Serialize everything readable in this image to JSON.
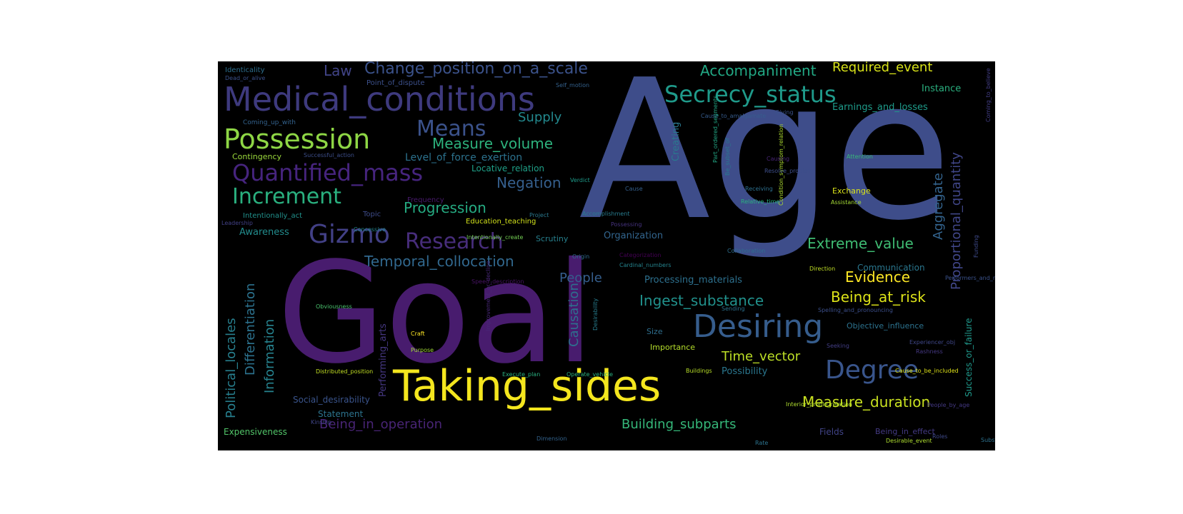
{
  "wordcloud": {
    "background": "#000000",
    "words": [
      {
        "text": "Age",
        "color": "#3e4d8a"
      },
      {
        "text": "Goal",
        "color": "#481c6e"
      },
      {
        "text": "Taking_sides",
        "color": "#f4e61e"
      },
      {
        "text": "Medical_conditions",
        "color": "#3e3a7e"
      },
      {
        "text": "Desiring",
        "color": "#365d8d"
      },
      {
        "text": "Possession",
        "color": "#8ed645"
      },
      {
        "text": "Secrecy_status",
        "color": "#1f9a8a"
      },
      {
        "text": "Degree",
        "color": "#39558c"
      },
      {
        "text": "Quantified_mass",
        "color": "#46247e"
      },
      {
        "text": "Increment",
        "color": "#2ab07f"
      },
      {
        "text": "Gizmo",
        "color": "#424086"
      },
      {
        "text": "Research",
        "color": "#472d7b"
      },
      {
        "text": "Means",
        "color": "#3b528b"
      },
      {
        "text": "Change_position_on_a_scale",
        "color": "#3b528b"
      },
      {
        "text": "Accompaniment",
        "color": "#22a884"
      },
      {
        "text": "Required_event",
        "color": "#d8e219"
      },
      {
        "text": "Law",
        "color": "#414487"
      },
      {
        "text": "Supply",
        "color": "#23898e"
      },
      {
        "text": "Measure_volume",
        "color": "#2db27d"
      },
      {
        "text": "Progression",
        "color": "#25ab82"
      },
      {
        "text": "Negation",
        "color": "#355f8d"
      },
      {
        "text": "Temporal_collocation",
        "color": "#31688e"
      },
      {
        "text": "Extreme_value",
        "color": "#3fbc73"
      },
      {
        "text": "Evidence",
        "color": "#fde725"
      },
      {
        "text": "Being_at_risk",
        "color": "#dde318"
      },
      {
        "text": "Ingest_substance",
        "color": "#21918c"
      },
      {
        "text": "Time_vector",
        "color": "#bddf26"
      },
      {
        "text": "Measure_duration",
        "color": "#c8e020"
      },
      {
        "text": "Being_in_operation",
        "color": "#482475"
      },
      {
        "text": "Building_subparts",
        "color": "#35b779"
      },
      {
        "text": "Information",
        "color": "#26828e"
      },
      {
        "text": "Differentiation",
        "color": "#2c728e"
      },
      {
        "text": "Political_locales",
        "color": "#277f8e"
      },
      {
        "text": "Causation",
        "color": "#2e6f8e"
      },
      {
        "text": "People",
        "color": "#355e8d"
      },
      {
        "text": "Aggregate",
        "color": "#33638d"
      },
      {
        "text": "Proportional_quantity",
        "color": "#404688"
      },
      {
        "text": "Earnings_and_losses",
        "color": "#1e9b8a"
      },
      {
        "text": "Instance",
        "color": "#2ab07f"
      },
      {
        "text": "Level_of_force_exertion",
        "color": "#2c728e"
      },
      {
        "text": "Locative_relation",
        "color": "#1fa088"
      },
      {
        "text": "Awareness",
        "color": "#228c8d"
      },
      {
        "text": "Processing_materials",
        "color": "#2d708e"
      },
      {
        "text": "Organization",
        "color": "#32658e"
      },
      {
        "text": "Performing_arts",
        "color": "#453781"
      },
      {
        "text": "Creating",
        "color": "#2a788e"
      },
      {
        "text": "Possibility",
        "color": "#2a768e"
      },
      {
        "text": "Contingency",
        "color": "#9bd93c"
      },
      {
        "text": "Social_desirability",
        "color": "#3a548c"
      },
      {
        "text": "Expensiveness",
        "color": "#52c569"
      },
      {
        "text": "Statement",
        "color": "#2c738e"
      },
      {
        "text": "Fields",
        "color": "#414487"
      },
      {
        "text": "Being_in_effect",
        "color": "#443a83"
      },
      {
        "text": "Success_or_failure",
        "color": "#1f988b"
      },
      {
        "text": "Communication",
        "color": "#2a768e"
      },
      {
        "text": "Objective_influence",
        "color": "#2c728e"
      },
      {
        "text": "Importance",
        "color": "#b5de2b"
      },
      {
        "text": "Size",
        "color": "#2e6e8e"
      },
      {
        "text": "Exchange",
        "color": "#dae319"
      },
      {
        "text": "Scrutiny",
        "color": "#27808e"
      },
      {
        "text": "Identicality",
        "color": "#2e6f8e"
      },
      {
        "text": "Point_of_dispute",
        "color": "#3c508b"
      },
      {
        "text": "Coming_up_with",
        "color": "#33628d"
      },
      {
        "text": "Frequency",
        "color": "#481a6c"
      },
      {
        "text": "Intentionally_act",
        "color": "#21918c"
      },
      {
        "text": "Education_teaching",
        "color": "#d2e21b"
      },
      {
        "text": "Topic",
        "color": "#3e4c8a"
      },
      {
        "text": "Dead_or_alive",
        "color": "#3b518b"
      },
      {
        "text": "Successful_action",
        "color": "#3d4e8a"
      },
      {
        "text": "Leadership",
        "color": "#424186"
      },
      {
        "text": "Concessive",
        "color": "#24868e"
      },
      {
        "text": "Intentionally_create",
        "color": "#75d054"
      },
      {
        "text": "Project",
        "color": "#2a788e"
      },
      {
        "text": "Accomplishment",
        "color": "#287c8e"
      },
      {
        "text": "Cause_to_amalgamate",
        "color": "#365c8d"
      },
      {
        "text": "Self_motion",
        "color": "#34618d"
      },
      {
        "text": "Roles",
        "color": "#3e4989"
      },
      {
        "text": "Origin",
        "color": "#2f6c8e"
      },
      {
        "text": "Cardinal_numbers",
        "color": "#25848e"
      },
      {
        "text": "Categorization",
        "color": "#440154"
      },
      {
        "text": "Speed_description",
        "color": "#471365"
      },
      {
        "text": "Obviousness",
        "color": "#4ac16d"
      },
      {
        "text": "Craft",
        "color": "#fde725"
      },
      {
        "text": "Purpose",
        "color": "#a2da37"
      },
      {
        "text": "Desirability",
        "color": "#287d8e"
      },
      {
        "text": "Improvement_or_decline",
        "color": "#482878"
      },
      {
        "text": "Execute_plan",
        "color": "#29af7f"
      },
      {
        "text": "Operate_vehicle",
        "color": "#2ab07f"
      },
      {
        "text": "Buildings",
        "color": "#b8de29"
      },
      {
        "text": "Distributed_position",
        "color": "#c2df23"
      },
      {
        "text": "Kinship",
        "color": "#404588"
      },
      {
        "text": "Dimension",
        "color": "#33638d"
      },
      {
        "text": "Desirable_event",
        "color": "#addc30"
      },
      {
        "text": "Substance",
        "color": "#2d718e"
      },
      {
        "text": "Rate",
        "color": "#2c738e"
      },
      {
        "text": "Interior_profile_relation",
        "color": "#b0dd2f"
      },
      {
        "text": "People_by_age",
        "color": "#443983"
      },
      {
        "text": "Rashness",
        "color": "#453882"
      },
      {
        "text": "Experiencer_obj",
        "color": "#3f4788"
      },
      {
        "text": "Cause_to_be_included",
        "color": "#dfe318"
      },
      {
        "text": "Performers_and_roles",
        "color": "#3b528b"
      },
      {
        "text": "Direction",
        "color": "#c0df25"
      },
      {
        "text": "Collaboration",
        "color": "#2e6e8e"
      },
      {
        "text": "Assistance",
        "color": "#a5db36"
      },
      {
        "text": "Relative_time",
        "color": "#2ab07f"
      },
      {
        "text": "Condition_symptom_relation",
        "color": "#addc30"
      },
      {
        "text": "Part_ordered_segments",
        "color": "#22a785"
      },
      {
        "text": "Be_subset_of",
        "color": "#2a778e"
      },
      {
        "text": "Attention",
        "color": "#37b878"
      },
      {
        "text": "Causing",
        "color": "#482576"
      },
      {
        "text": "Coming_to_believe",
        "color": "#433e85"
      },
      {
        "text": "Funding",
        "color": "#3e4a89"
      },
      {
        "text": "Verdict",
        "color": "#1e9b8a"
      },
      {
        "text": "Sending",
        "color": "#2c718e"
      },
      {
        "text": "Cause",
        "color": "#35608d"
      },
      {
        "text": "Resolve_problem",
        "color": "#3d4e8a"
      },
      {
        "text": "Receiving",
        "color": "#2d708e"
      },
      {
        "text": "Seeking",
        "color": "#433e85"
      },
      {
        "text": "Spelling_and_pronouncing",
        "color": "#3c4f8a"
      },
      {
        "text": "Giving",
        "color": "#3b528b"
      },
      {
        "text": "Possessing",
        "color": "#46337f"
      }
    ]
  }
}
